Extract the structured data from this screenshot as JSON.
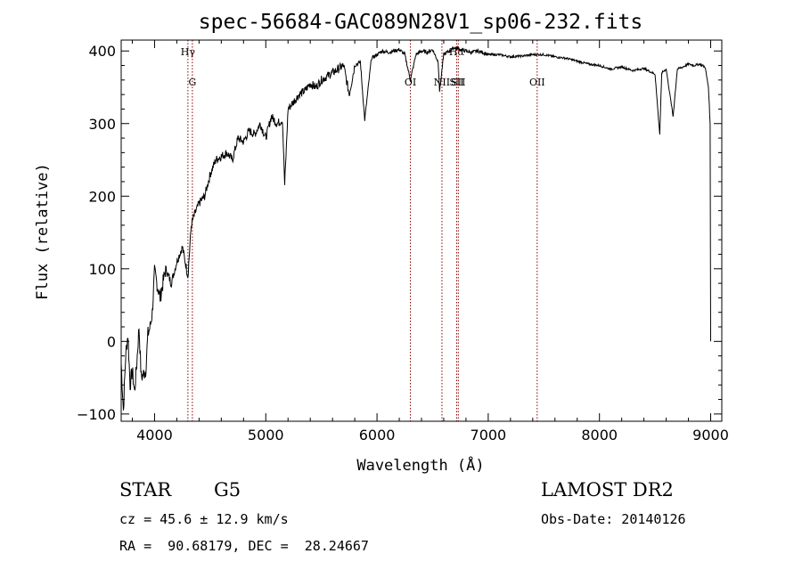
{
  "chart_data": {
    "type": "line",
    "title": "spec-56684-GAC089N28V1_sp06-232.fits",
    "xlabel": "Wavelength (Å)",
    "ylabel": "Flux (relative)",
    "xlim": [
      3700,
      9100
    ],
    "ylim": [
      -110,
      415
    ],
    "xticks": [
      4000,
      5000,
      6000,
      7000,
      8000,
      9000
    ],
    "yticks": [
      -100,
      0,
      100,
      200,
      300,
      400
    ],
    "line_color": "#000000",
    "marker_color": "#8b0000",
    "series": [
      {
        "x": [
          3700,
          3720,
          3740,
          3760,
          3780,
          3800,
          3820,
          3840,
          3860,
          3880,
          3900,
          3920,
          3940,
          3960,
          3980,
          4000,
          4050,
          4100,
          4150,
          4200,
          4250,
          4300,
          4330,
          4360,
          4400,
          4450,
          4500,
          4550,
          4600,
          4650,
          4700,
          4750,
          4800,
          4850,
          4900,
          4950,
          5000,
          5050,
          5100,
          5150,
          5170,
          5200,
          5250,
          5300,
          5350,
          5400,
          5450,
          5500,
          5550,
          5600,
          5650,
          5700,
          5750,
          5800,
          5850,
          5890,
          5950,
          6000,
          6050,
          6100,
          6150,
          6200,
          6250,
          6300,
          6350,
          6400,
          6450,
          6500,
          6550,
          6563,
          6600,
          6650,
          6700,
          6750,
          6800,
          6850,
          6900,
          6950,
          7000,
          7100,
          7200,
          7300,
          7400,
          7500,
          7600,
          7700,
          7800,
          7900,
          8000,
          8100,
          8200,
          8300,
          8400,
          8450,
          8500,
          8542,
          8560,
          8600,
          8662,
          8700,
          8750,
          8800,
          8850,
          8900,
          8950,
          8980,
          8995,
          9000
        ],
        "y": [
          -30,
          -95,
          -20,
          10,
          -60,
          -40,
          -70,
          -30,
          20,
          -50,
          -45,
          -40,
          10,
          20,
          40,
          95,
          60,
          100,
          80,
          110,
          130,
          90,
          160,
          175,
          190,
          200,
          230,
          250,
          255,
          260,
          250,
          280,
          275,
          290,
          285,
          300,
          280,
          310,
          300,
          305,
          215,
          320,
          330,
          340,
          345,
          355,
          350,
          360,
          365,
          370,
          375,
          380,
          340,
          380,
          385,
          305,
          390,
          395,
          400,
          398,
          400,
          402,
          395,
          360,
          395,
          400,
          398,
          402,
          385,
          345,
          395,
          400,
          405,
          402,
          400,
          398,
          400,
          398,
          395,
          395,
          392,
          393,
          395,
          395,
          392,
          390,
          386,
          382,
          380,
          375,
          378,
          373,
          376,
          372,
          368,
          285,
          370,
          375,
          310,
          375,
          378,
          382,
          380,
          382,
          378,
          350,
          300,
          0
        ]
      }
    ],
    "lines": [
      {
        "x": 4300,
        "label_bottom": "",
        "label_top": "Hγ"
      },
      {
        "x": 4340,
        "label_bottom": "G",
        "label_top": ""
      },
      {
        "x": 6300,
        "label_bottom": "OI",
        "label_top": ""
      },
      {
        "x": 6584,
        "label_bottom": "NII",
        "label_top": ""
      },
      {
        "x": 6716,
        "label_bottom": "SII",
        "label_top": "Hα"
      },
      {
        "x": 6731,
        "label_bottom": "SII",
        "label_top": ""
      },
      {
        "x": 7440,
        "label_bottom": "OII",
        "label_top": ""
      }
    ]
  },
  "info": {
    "object_class": "STAR",
    "subclass": "G5",
    "survey": "LAMOST DR2",
    "cz": "cz = 45.6 ± 12.9 km/s",
    "obs_date": "Obs-Date: 20140126",
    "coords": "RA =  90.68179, DEC =  28.24667"
  }
}
